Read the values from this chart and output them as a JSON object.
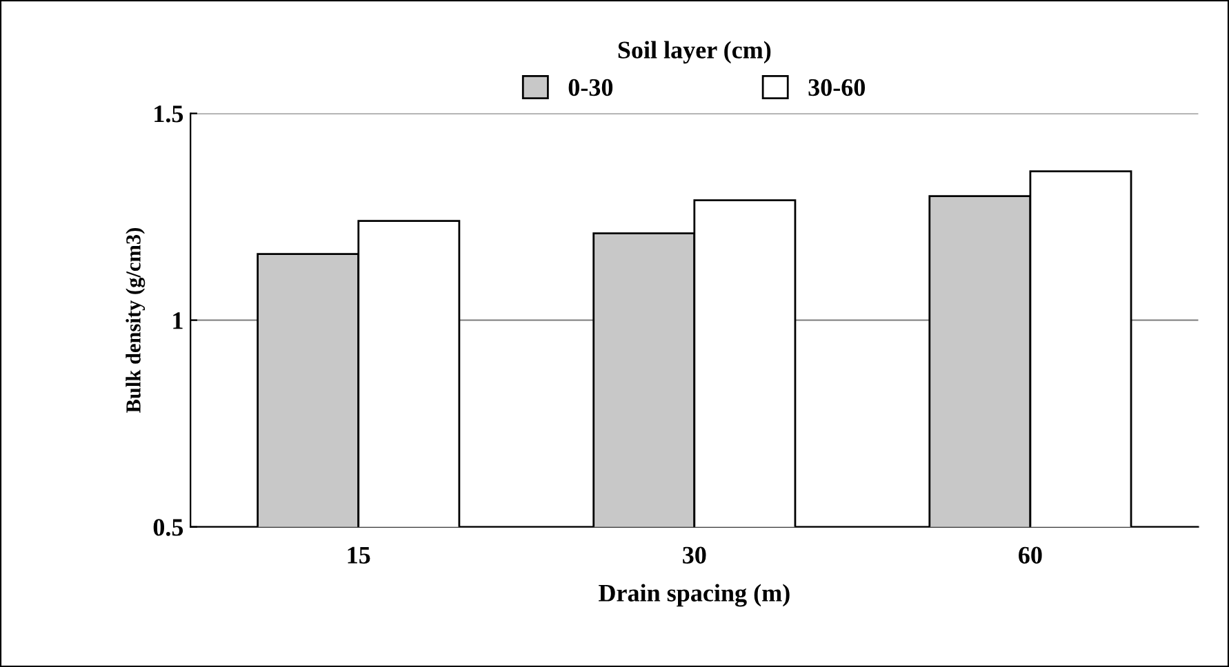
{
  "chart_data": {
    "type": "bar",
    "xlabel": "Drain spacing (m)",
    "ylabel": "Bulk density (g/cm3)",
    "legend_title": "Soil layer (cm)",
    "categories": [
      "15",
      "30",
      "60"
    ],
    "series": [
      {
        "name": "0-30",
        "color": "#c8c8c8",
        "values": [
          1.16,
          1.21,
          1.3
        ]
      },
      {
        "name": "30-60",
        "color": "#ffffff",
        "values": [
          1.24,
          1.29,
          1.36
        ]
      }
    ],
    "ylim": [
      0.5,
      1.5
    ],
    "yticks": [
      {
        "value": 0.5,
        "label": "0.5"
      },
      1,
      1.5
    ],
    "grid": "y",
    "legend": "top"
  }
}
